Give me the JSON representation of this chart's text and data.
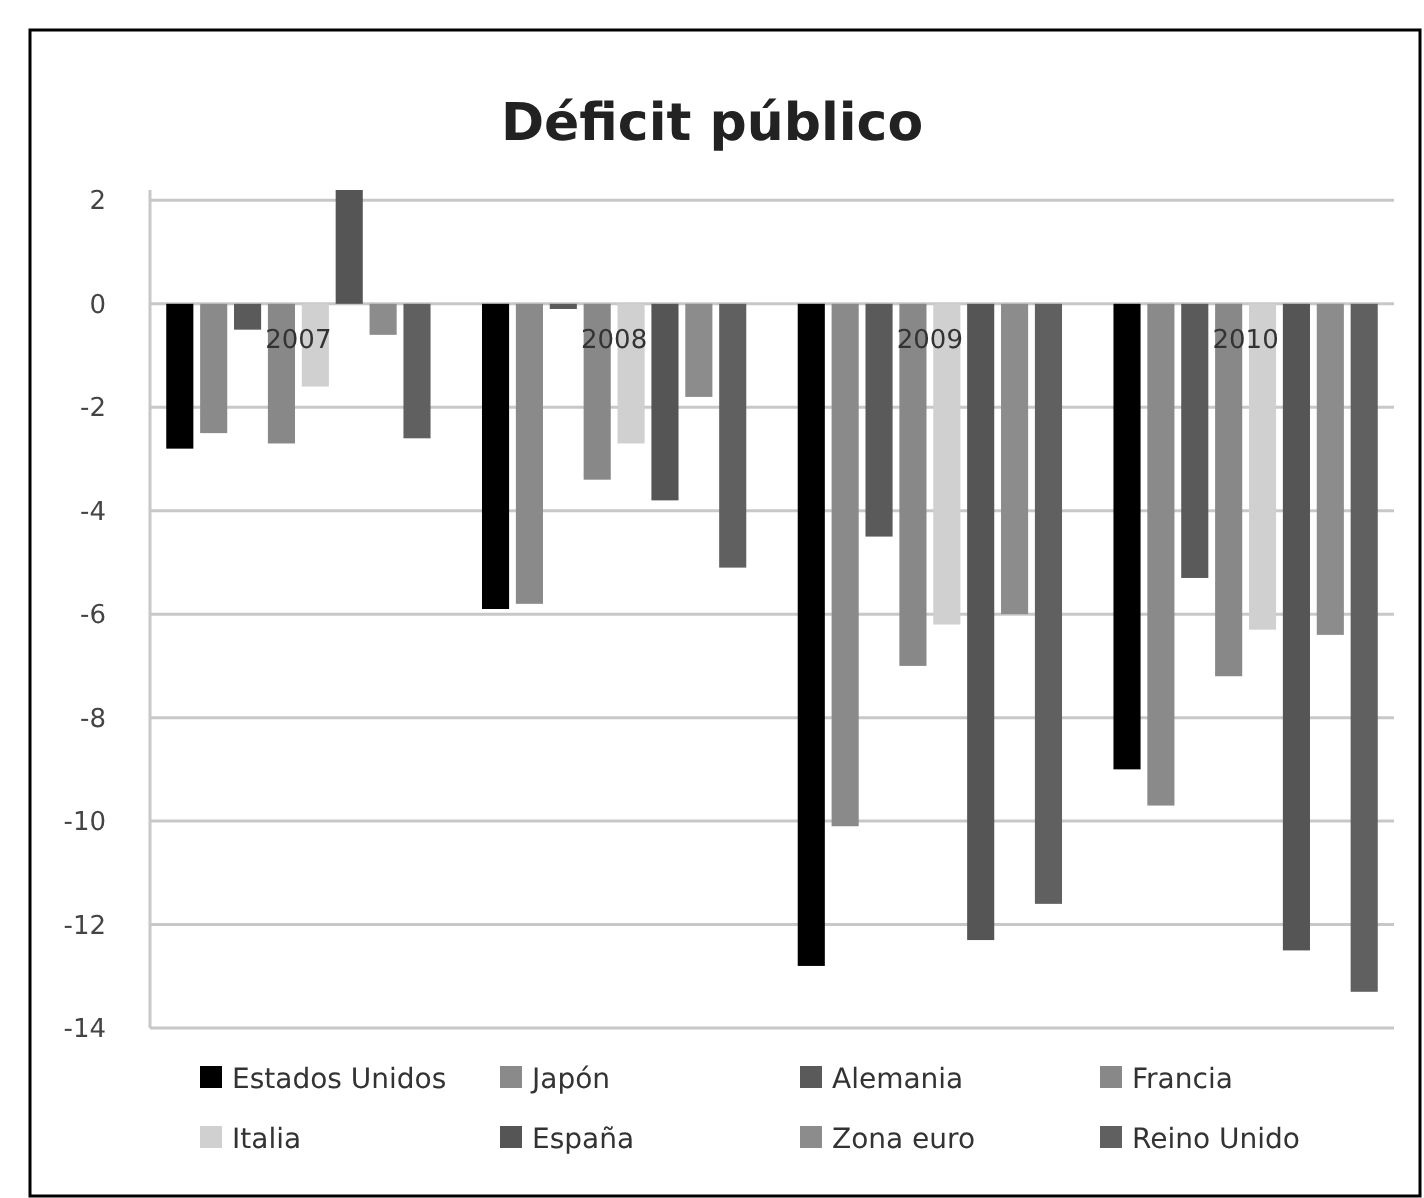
{
  "chart_data": {
    "type": "bar",
    "title": "Déficit público",
    "categories": [
      "2007",
      "2008",
      "2009",
      "2010"
    ],
    "series": [
      {
        "name": "Estados Unidos",
        "color": "#000000",
        "values": [
          -2.8,
          -5.9,
          -12.8,
          -9.0
        ]
      },
      {
        "name": "Japón",
        "color": "#8a8a8a",
        "values": [
          -2.5,
          -5.8,
          -10.1,
          -9.7
        ]
      },
      {
        "name": "Alemania",
        "color": "#5a5a5a",
        "values": [
          -0.5,
          -0.1,
          -4.5,
          -5.3
        ]
      },
      {
        "name": "Francia",
        "color": "#888888",
        "values": [
          -2.7,
          -3.4,
          -7.0,
          -7.2
        ]
      },
      {
        "name": "Italia",
        "color": "#d0d0d0",
        "values": [
          -1.6,
          -2.7,
          -6.2,
          -6.3
        ]
      },
      {
        "name": "España",
        "color": "#555555",
        "values": [
          2.2,
          -3.8,
          -12.3,
          -12.5
        ]
      },
      {
        "name": "Zona euro",
        "color": "#8c8c8c",
        "values": [
          -0.6,
          -1.8,
          -6.0,
          -6.4
        ]
      },
      {
        "name": "Reino Unido",
        "color": "#606060",
        "values": [
          -2.6,
          -5.1,
          -11.6,
          -13.3
        ]
      }
    ],
    "ylim": [
      -14,
      2.2
    ],
    "yticks": [
      2,
      0,
      -2,
      -4,
      -6,
      -8,
      -10,
      -12,
      -14
    ],
    "grid": "y",
    "legend": "bottom"
  }
}
